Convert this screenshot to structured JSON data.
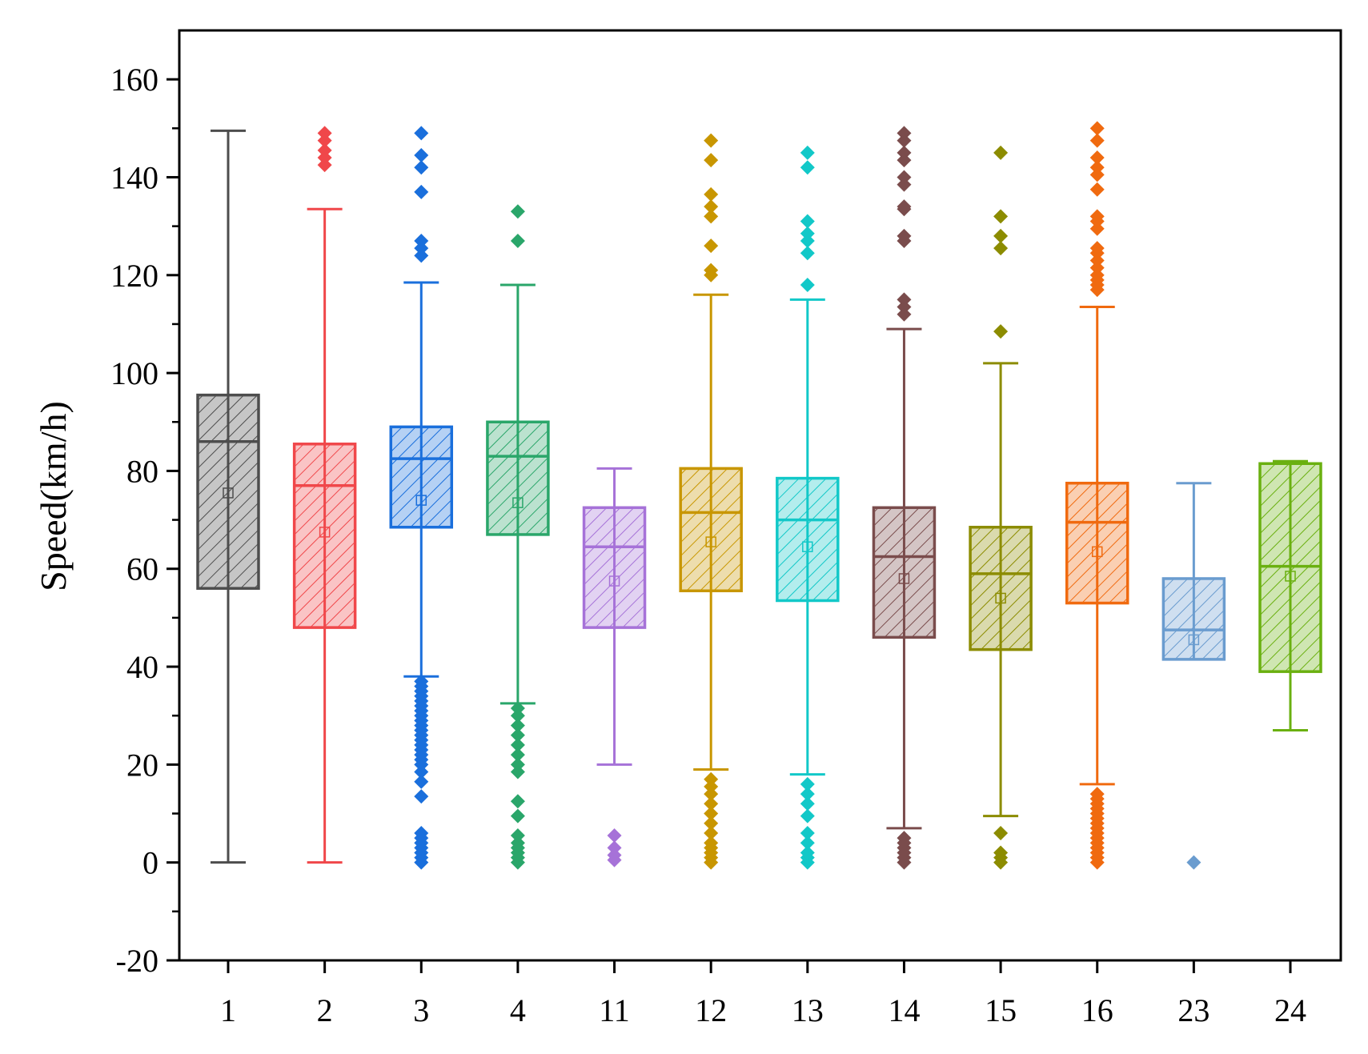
{
  "chart_data": {
    "type": "box",
    "title": "",
    "xlabel": "",
    "ylabel": "Speed(km/h)",
    "ylim": [
      -20,
      170
    ],
    "yticks": [
      -20,
      0,
      20,
      40,
      60,
      80,
      100,
      120,
      140,
      160
    ],
    "categories": [
      "1",
      "2",
      "3",
      "4",
      "11",
      "12",
      "13",
      "14",
      "15",
      "16",
      "23",
      "24"
    ],
    "series": [
      {
        "name": "1",
        "color": "#4d4d4d",
        "whisker_low": 0,
        "q1": 56,
        "median": 86,
        "q3": 95.5,
        "whisker_high": 149.5,
        "mean": 75.5,
        "outliers": []
      },
      {
        "name": "2",
        "color": "#f0474a",
        "whisker_low": 0,
        "q1": 48,
        "median": 77,
        "q3": 85.5,
        "whisker_high": 133.5,
        "mean": 67.5,
        "outliers": [
          142.5,
          144,
          145.5,
          147.5,
          149
        ]
      },
      {
        "name": "3",
        "color": "#1a6fdc",
        "whisker_low": 38,
        "q1": 68.5,
        "median": 82.5,
        "q3": 89,
        "whisker_high": 118.5,
        "mean": 74,
        "outliers": [
          0,
          1,
          2,
          3,
          4,
          5,
          6,
          13.5,
          16.5,
          18.5,
          20,
          21,
          22,
          23,
          24,
          25,
          26,
          27,
          28,
          29,
          30,
          31,
          32,
          33,
          34,
          35,
          36,
          37,
          124,
          125.5,
          127,
          137,
          142,
          144.5,
          149
        ]
      },
      {
        "name": "4",
        "color": "#2aa66a",
        "whisker_low": 32.5,
        "q1": 67,
        "median": 83,
        "q3": 90,
        "whisker_high": 118,
        "mean": 73.5,
        "outliers": [
          0,
          1,
          2,
          3,
          4,
          5.5,
          9.5,
          12.5,
          18.5,
          20,
          22,
          24,
          26,
          28,
          30,
          31.5,
          127,
          133
        ]
      },
      {
        "name": "11",
        "color": "#a672d8",
        "whisker_low": 20,
        "q1": 48,
        "median": 64.5,
        "q3": 72.5,
        "whisker_high": 80.5,
        "mean": 57.5,
        "outliers": [
          0.5,
          1.5,
          3,
          5.5
        ]
      },
      {
        "name": "12",
        "color": "#c89600",
        "whisker_low": 19,
        "q1": 55.5,
        "median": 71.5,
        "q3": 80.5,
        "whisker_high": 116,
        "mean": 65.5,
        "outliers": [
          0,
          1,
          2,
          3,
          4,
          6,
          8,
          10,
          12,
          14,
          15.5,
          17,
          120,
          121,
          126,
          132,
          134,
          136.5,
          143.5,
          147.5
        ]
      },
      {
        "name": "13",
        "color": "#12c8c8",
        "whisker_low": 18,
        "q1": 53.5,
        "median": 70,
        "q3": 78.5,
        "whisker_high": 115,
        "mean": 64.5,
        "outliers": [
          0,
          1,
          2,
          4,
          6,
          9.5,
          12,
          14,
          16,
          118,
          124.5,
          127,
          128.5,
          131,
          142,
          145
        ]
      },
      {
        "name": "14",
        "color": "#7a4c4c",
        "whisker_low": 7,
        "q1": 46,
        "median": 62.5,
        "q3": 72.5,
        "whisker_high": 109,
        "mean": 58,
        "outliers": [
          0,
          1,
          2,
          3,
          4,
          5,
          112,
          113.5,
          115,
          127,
          128,
          133.5,
          134,
          138.5,
          140,
          143.5,
          145,
          147.5,
          149
        ]
      },
      {
        "name": "15",
        "color": "#8c8c00",
        "whisker_low": 9.5,
        "q1": 43.5,
        "median": 59,
        "q3": 68.5,
        "whisker_high": 102,
        "mean": 54,
        "outliers": [
          0,
          1,
          2,
          6,
          108.5,
          125.5,
          128,
          132,
          145
        ]
      },
      {
        "name": "16",
        "color": "#f06a0f",
        "whisker_low": 16,
        "q1": 53,
        "median": 69.5,
        "q3": 77.5,
        "whisker_high": 113.5,
        "mean": 63.5,
        "outliers": [
          0,
          1,
          2,
          3,
          4,
          5,
          6,
          7,
          8,
          9,
          10,
          11,
          12,
          13,
          14,
          117,
          118,
          119,
          120,
          121.5,
          123,
          124.5,
          125.5,
          129.5,
          131,
          132,
          137.5,
          140.5,
          142,
          144,
          147.5,
          150
        ]
      },
      {
        "name": "23",
        "color": "#6a9ccf",
        "whisker_low": 41.5,
        "q1": 41.5,
        "median": 47.5,
        "q3": 58,
        "whisker_high": 77.5,
        "mean": 45.5,
        "outliers": [
          0
        ]
      },
      {
        "name": "24",
        "color": "#6ab010",
        "whisker_low": 27,
        "q1": 39,
        "median": 60.5,
        "q3": 81.5,
        "whisker_high": 82,
        "mean": 58.5,
        "outliers": []
      }
    ]
  }
}
